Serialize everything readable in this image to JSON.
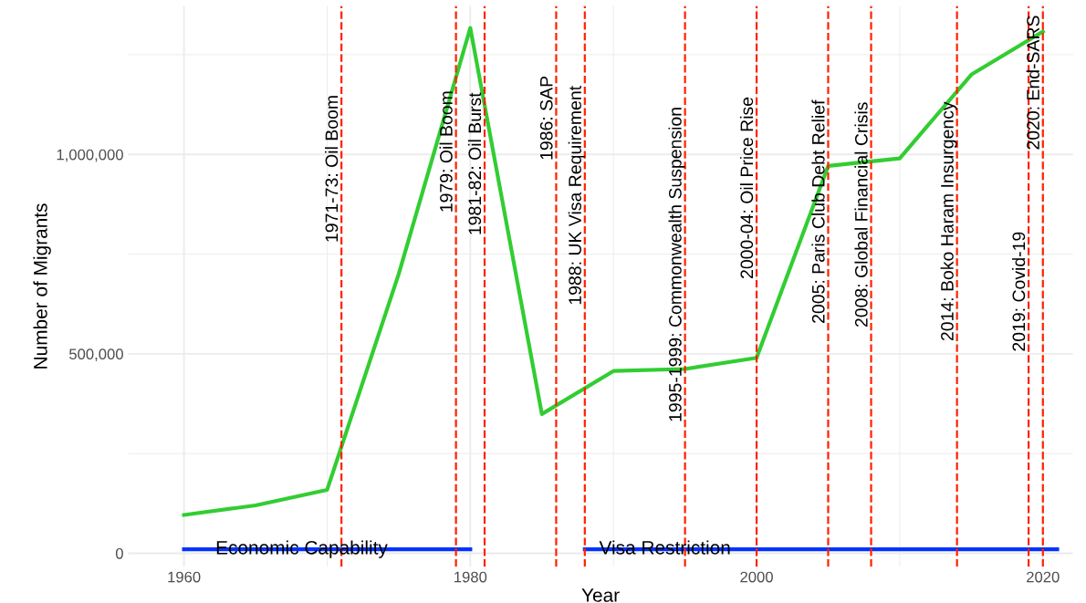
{
  "chart_data": {
    "type": "line",
    "xlabel": "Year",
    "ylabel": "Number of Migrants",
    "xlim": [
      1956.1,
      2022.1
    ],
    "ylim": [
      -34000,
      1372000
    ],
    "xticks": [
      1960,
      1980,
      2000,
      2020
    ],
    "yticks": [
      0,
      {
        "value": 500000,
        "label": "500,000"
      },
      {
        "value": 1000000,
        "label": "1,000,000"
      }
    ],
    "grid": true,
    "legend": false,
    "series": [
      {
        "color": "#32cd32",
        "x": [
          1960,
          1965,
          1970,
          1975,
          1980,
          1985,
          1990,
          1995,
          2000,
          2005,
          2010,
          2015,
          2020
        ],
        "values": [
          96000,
          120000,
          159000,
          700000,
          1317000,
          349000,
          457000,
          462000,
          490000,
          971000,
          990000,
          1200000,
          1308000
        ]
      },
      {
        "color": "#0033ff",
        "x": [
          1960,
          1980
        ],
        "values": [
          10000,
          10000
        ]
      },
      {
        "color": "#0033ff",
        "x": [
          1988,
          2021
        ],
        "values": [
          10000,
          10000
        ]
      }
    ],
    "ref_lines": [
      {
        "axis": "x",
        "value": 1971,
        "color": "#ff2200",
        "line_style": "dashed"
      },
      {
        "axis": "x",
        "value": 1979,
        "color": "#ff2200",
        "line_style": "dashed"
      },
      {
        "axis": "x",
        "value": 1981,
        "color": "#ff2200",
        "line_style": "dashed"
      },
      {
        "axis": "x",
        "value": 1986,
        "color": "#ff2200",
        "line_style": "dashed"
      },
      {
        "axis": "x",
        "value": 1988,
        "color": "#ff2200",
        "line_style": "dashed"
      },
      {
        "axis": "x",
        "value": 1995,
        "color": "#ff2200",
        "line_style": "dashed"
      },
      {
        "axis": "x",
        "value": 2000,
        "color": "#ff2200",
        "line_style": "dashed"
      },
      {
        "axis": "x",
        "value": 2005,
        "color": "#ff2200",
        "line_style": "dashed"
      },
      {
        "axis": "x",
        "value": 2008,
        "color": "#ff2200",
        "line_style": "dashed"
      },
      {
        "axis": "x",
        "value": 2014,
        "color": "#ff2200",
        "line_style": "dashed"
      },
      {
        "axis": "x",
        "value": 2019,
        "color": "#ff2200",
        "line_style": "dashed"
      },
      {
        "axis": "x",
        "value": 2020,
        "color": "#ff2200",
        "line_style": "dashed"
      }
    ],
    "annotations": [
      {
        "text": "1971-73: Oil Boom",
        "x": 1971,
        "y": 964000
      },
      {
        "text": "1979: Oil Boom",
        "x": 1979,
        "y": 1007000
      },
      {
        "text": "1981-82: Oil Burst",
        "x": 1981,
        "y": 976000
      },
      {
        "text": "1986: SAP",
        "x": 1986,
        "y": 1091000
      },
      {
        "text": "1988: UK Visa Requirement",
        "x": 1988,
        "y": 897000
      },
      {
        "text": "1995-1999: Commonwealth Suspension",
        "x": 1995,
        "y": 724000
      },
      {
        "text": "2000-04: Oil Price Rise",
        "x": 2000,
        "y": 916000
      },
      {
        "text": "2005: Paris Club Debt Relief",
        "x": 2005,
        "y": 856000
      },
      {
        "text": "2008: Global Financial Crisis",
        "x": 2008,
        "y": 849000
      },
      {
        "text": "2014: Boko Haram Insurgency",
        "x": 2014,
        "y": 832000
      },
      {
        "text": "2019: Covid-19",
        "x": 2019,
        "y": 656000
      },
      {
        "text": "2020: End-SARS",
        "x": 2020,
        "y": 1180000
      },
      {
        "text": "Economic Capability",
        "x": 1962.2,
        "y": 10000
      },
      {
        "text": "Visa Restriction",
        "x": 1989,
        "y": 10000
      }
    ]
  }
}
